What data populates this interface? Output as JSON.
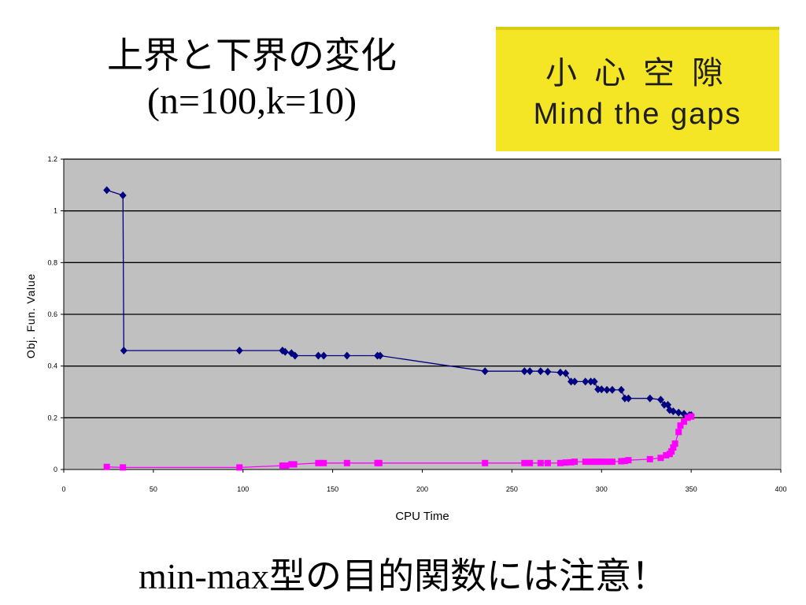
{
  "title": {
    "main": "上界と下界の変化",
    "sub": "(n=100,k=10)"
  },
  "sign": {
    "chinese": "小心空隙",
    "english": "Mind the gaps",
    "background": "#f5e625"
  },
  "footer": {
    "latin": "min-max",
    "japanese": "型の目的関数には注意！"
  },
  "chart_data": {
    "type": "line",
    "xlabel": "CPU Time",
    "ylabel": "Obj. Fun. Value",
    "xlim": [
      0,
      400
    ],
    "ylim": [
      0,
      1.2
    ],
    "xticks": [
      0,
      50,
      100,
      150,
      200,
      250,
      300,
      350,
      400
    ],
    "yticks": [
      0,
      0.2,
      0.4,
      0.6,
      0.8,
      1,
      1.2
    ],
    "plot_background": "#c0c0c0",
    "grid": "horizontal",
    "series": [
      {
        "color": "#000080",
        "marker": "diamond",
        "points": [
          [
            24,
            1.08
          ],
          [
            33,
            1.06
          ],
          [
            33.5,
            0.46
          ],
          [
            98,
            0.46
          ],
          [
            122,
            0.46
          ],
          [
            123.5,
            0.455
          ],
          [
            127,
            0.45
          ],
          [
            129,
            0.44
          ],
          [
            142,
            0.44
          ],
          [
            145,
            0.44
          ],
          [
            158,
            0.44
          ],
          [
            175,
            0.44
          ],
          [
            176.5,
            0.44
          ],
          [
            235,
            0.38
          ],
          [
            257,
            0.38
          ],
          [
            260,
            0.38
          ],
          [
            266,
            0.38
          ],
          [
            270,
            0.378
          ],
          [
            277,
            0.375
          ],
          [
            280,
            0.372
          ],
          [
            283,
            0.34
          ],
          [
            285,
            0.34
          ],
          [
            291,
            0.34
          ],
          [
            294,
            0.34
          ],
          [
            296,
            0.34
          ],
          [
            298,
            0.31
          ],
          [
            300,
            0.31
          ],
          [
            303,
            0.308
          ],
          [
            306,
            0.308
          ],
          [
            311,
            0.308
          ],
          [
            313,
            0.275
          ],
          [
            315,
            0.275
          ],
          [
            327,
            0.275
          ],
          [
            333,
            0.27
          ],
          [
            335,
            0.25
          ],
          [
            337,
            0.25
          ],
          [
            338,
            0.23
          ],
          [
            340,
            0.225
          ],
          [
            343,
            0.22
          ],
          [
            346,
            0.215
          ],
          [
            349,
            0.21
          ],
          [
            350,
            0.21
          ]
        ]
      },
      {
        "color": "#ff00ff",
        "marker": "square",
        "points": [
          [
            24,
            0.01
          ],
          [
            33,
            0.008
          ],
          [
            98,
            0.008
          ],
          [
            122,
            0.015
          ],
          [
            124,
            0.015
          ],
          [
            127,
            0.02
          ],
          [
            128.5,
            0.02
          ],
          [
            142,
            0.025
          ],
          [
            145,
            0.025
          ],
          [
            158,
            0.025
          ],
          [
            175,
            0.025
          ],
          [
            176,
            0.025
          ],
          [
            235,
            0.025
          ],
          [
            257,
            0.025
          ],
          [
            260,
            0.025
          ],
          [
            266,
            0.025
          ],
          [
            270,
            0.025
          ],
          [
            277,
            0.025
          ],
          [
            280,
            0.027
          ],
          [
            283,
            0.028
          ],
          [
            285,
            0.03
          ],
          [
            291,
            0.03
          ],
          [
            294,
            0.03
          ],
          [
            296,
            0.03
          ],
          [
            298,
            0.03
          ],
          [
            300,
            0.03
          ],
          [
            303,
            0.03
          ],
          [
            306,
            0.03
          ],
          [
            311,
            0.032
          ],
          [
            313,
            0.033
          ],
          [
            315,
            0.036
          ],
          [
            327,
            0.04
          ],
          [
            333,
            0.045
          ],
          [
            336,
            0.055
          ],
          [
            338,
            0.06
          ],
          [
            339,
            0.07
          ],
          [
            340,
            0.085
          ],
          [
            341,
            0.1
          ],
          [
            343,
            0.145
          ],
          [
            344,
            0.17
          ],
          [
            346,
            0.185
          ],
          [
            348,
            0.2
          ],
          [
            350,
            0.205
          ]
        ]
      }
    ]
  }
}
